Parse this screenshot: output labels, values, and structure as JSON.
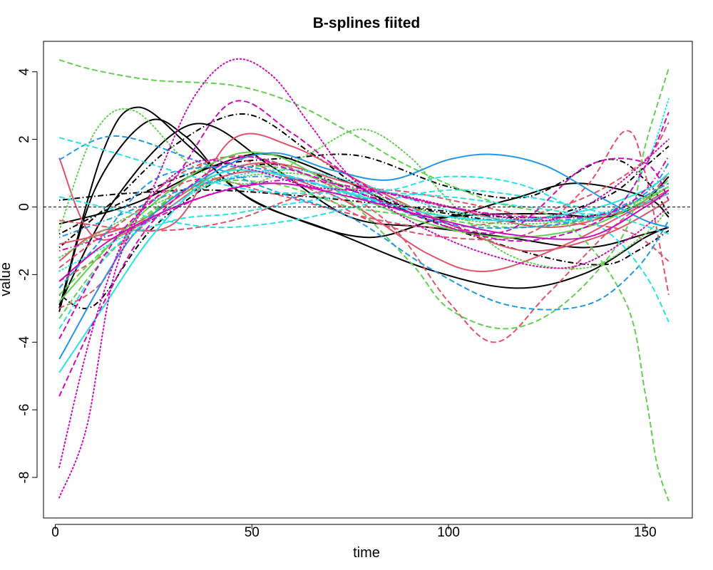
{
  "chart_data": {
    "type": "line",
    "title": "B-splines fiited",
    "xlabel": "time",
    "ylabel": "value",
    "xlim": [
      -3,
      162
    ],
    "ylim": [
      -9.2,
      4.9
    ],
    "xticks": [
      0,
      50,
      100,
      150
    ],
    "yticks": [
      4,
      2,
      0,
      -2,
      -4,
      -6,
      -8
    ],
    "xtick_labels": [
      "0",
      "50",
      "100",
      "150"
    ],
    "ytick_labels": [
      "4",
      "2",
      "0",
      "-2",
      "-4",
      "-6",
      "-8"
    ],
    "reference_line": {
      "y": 0,
      "style": "dashed",
      "color": "#000000"
    },
    "grid": false,
    "legend": "none",
    "palette": [
      "#000000",
      "#DF536B",
      "#61D04F",
      "#2297E6",
      "#28E2E5",
      "#CD0BBC"
    ],
    "series": [
      {
        "color": "#000000",
        "dash": "solid",
        "x": [
          1,
          12,
          21,
          35,
          50,
          70,
          95,
          117,
          135,
          150,
          156
        ],
        "y": [
          -3.0,
          1.6,
          2.95,
          1.7,
          0.2,
          -0.7,
          -1.85,
          -2.4,
          -1.95,
          -0.9,
          -0.6
        ]
      },
      {
        "color": "#000000",
        "dash": "solid",
        "x": [
          1,
          10,
          23,
          33,
          45,
          60,
          80,
          100,
          125,
          140,
          150,
          156
        ],
        "y": [
          -3.1,
          0.5,
          2.5,
          2.1,
          0.6,
          -0.3,
          -0.9,
          -0.3,
          -0.2,
          -0.3,
          0.2,
          0.9
        ]
      },
      {
        "color": "#000000",
        "dash": "solid",
        "x": [
          1,
          15,
          35,
          55,
          75,
          95,
          115,
          135,
          150,
          156
        ],
        "y": [
          -2.9,
          0.2,
          2.45,
          1.2,
          -0.3,
          -0.6,
          -0.9,
          -1.2,
          -0.8,
          -0.6
        ]
      },
      {
        "color": "#000000",
        "dash": "solid",
        "x": [
          1,
          20,
          40,
          55,
          75,
          95,
          115,
          132,
          150,
          156
        ],
        "y": [
          -0.5,
          0.1,
          1.2,
          1.55,
          0.7,
          -0.3,
          0.2,
          0.7,
          0.3,
          -0.3
        ]
      },
      {
        "color": "#000000",
        "dash": "dashdot",
        "x": [
          1,
          10,
          25,
          45,
          60,
          80,
          100,
          120,
          140,
          150,
          156
        ],
        "y": [
          -2.6,
          -2.9,
          -0.6,
          1.0,
          1.2,
          0.3,
          -0.2,
          -0.4,
          0.3,
          1.2,
          1.8
        ]
      },
      {
        "color": "#000000",
        "dash": "dashdot",
        "x": [
          1,
          15,
          30,
          48,
          65,
          80,
          100,
          125,
          140,
          148,
          156
        ],
        "y": [
          -1.2,
          0.2,
          1.8,
          2.75,
          1.6,
          0.4,
          -0.6,
          -1.5,
          -1.7,
          -1.3,
          -0.7
        ]
      },
      {
        "color": "#000000",
        "dash": "dashdot",
        "x": [
          1,
          20,
          40,
          60,
          78,
          100,
          120,
          140,
          150,
          156
        ],
        "y": [
          -0.8,
          0.3,
          1.2,
          1.45,
          1.5,
          0.6,
          0.3,
          1.4,
          0.8,
          -0.2
        ]
      },
      {
        "color": "#000000",
        "dash": "dashdot",
        "x": [
          1,
          18,
          40,
          65,
          90,
          115,
          140,
          156
        ],
        "y": [
          0.2,
          0.4,
          0.5,
          0.3,
          0.0,
          -0.3,
          -0.2,
          0.4
        ]
      },
      {
        "color": "#DF536B",
        "dash": "solid",
        "x": [
          1,
          10,
          25,
          40,
          55,
          75,
          95,
          110,
          130,
          145,
          156
        ],
        "y": [
          1.45,
          -0.9,
          -0.3,
          0.8,
          1.0,
          0.1,
          -1.4,
          -1.9,
          -1.1,
          -0.2,
          0.4
        ]
      },
      {
        "color": "#DF536B",
        "dash": "solid",
        "x": [
          1,
          12,
          30,
          45,
          60,
          80,
          100,
          120,
          140,
          156
        ],
        "y": [
          -1.6,
          -0.7,
          -0.5,
          2.0,
          1.8,
          0.6,
          -0.5,
          -1.3,
          -0.8,
          0.2
        ]
      },
      {
        "color": "#DF536B",
        "dash": "solid",
        "x": [
          1,
          20,
          40,
          55,
          75,
          100,
          125,
          145,
          156
        ],
        "y": [
          -1.1,
          -0.5,
          0.9,
          1.3,
          0.7,
          0.0,
          -0.6,
          -0.1,
          0.5
        ]
      },
      {
        "color": "#DF536B",
        "dash": "dashed",
        "x": [
          1,
          12,
          25,
          45,
          65,
          85,
          100,
          112,
          125,
          140,
          150,
          156
        ],
        "y": [
          -3.0,
          -2.2,
          0.4,
          1.5,
          0.9,
          -0.5,
          -2.8,
          -4.0,
          -2.6,
          -0.8,
          0.2,
          1.0
        ]
      },
      {
        "color": "#DF536B",
        "dash": "dashed",
        "x": [
          1,
          20,
          40,
          60,
          80,
          100,
          120,
          135,
          145,
          150,
          156
        ],
        "y": [
          -2.2,
          -0.8,
          1.4,
          0.8,
          -0.4,
          -0.9,
          -0.8,
          0.6,
          2.25,
          1.0,
          -2.6
        ]
      },
      {
        "color": "#DF536B",
        "dash": "dashed",
        "x": [
          1,
          15,
          35,
          55,
          75,
          95,
          115,
          135,
          150,
          156
        ],
        "y": [
          -1.8,
          -0.6,
          0.8,
          0.4,
          -0.2,
          -0.6,
          -0.4,
          0.3,
          1.4,
          2.5
        ]
      },
      {
        "color": "#DF536B",
        "dash": "dashed",
        "x": [
          1,
          25,
          45,
          65,
          85,
          105,
          125,
          145,
          156
        ],
        "y": [
          -0.4,
          -0.7,
          -0.4,
          0.4,
          0.5,
          0.1,
          -0.4,
          -0.7,
          -1.6
        ]
      },
      {
        "color": "#61D04F",
        "dash": "dashed",
        "x": [
          1,
          10,
          25,
          45,
          60,
          75,
          90,
          110,
          130,
          145,
          150,
          153,
          156
        ],
        "y": [
          4.35,
          4.05,
          3.75,
          3.6,
          3.1,
          2.2,
          1.2,
          0.2,
          -0.5,
          -2.8,
          -5.5,
          -7.6,
          -8.7
        ]
      },
      {
        "color": "#61D04F",
        "dash": "dashed",
        "x": [
          1,
          12,
          30,
          50,
          70,
          90,
          100,
          115,
          130,
          145,
          150,
          156
        ],
        "y": [
          -3.3,
          -1.6,
          0.3,
          1.2,
          0.6,
          -1.6,
          -3.0,
          -3.6,
          -2.8,
          -0.7,
          1.8,
          4.1
        ]
      },
      {
        "color": "#61D04F",
        "dash": "dashed",
        "x": [
          1,
          15,
          35,
          55,
          75,
          95,
          115,
          135,
          150,
          156
        ],
        "y": [
          -2.6,
          -1.0,
          0.6,
          0.7,
          0.0,
          -0.3,
          -0.6,
          -0.4,
          0.3,
          0.8
        ]
      },
      {
        "color": "#61D04F",
        "dash": "dotted",
        "x": [
          1,
          10,
          20,
          35,
          50,
          65,
          78,
          90,
          100,
          115,
          135,
          150,
          156
        ],
        "y": [
          -0.7,
          2.2,
          2.85,
          1.2,
          0.7,
          1.6,
          2.3,
          1.5,
          0.2,
          -1.4,
          -1.8,
          -0.8,
          0.0
        ]
      },
      {
        "color": "#61D04F",
        "dash": "solid",
        "x": [
          1,
          20,
          40,
          55,
          75,
          95,
          115,
          135,
          150,
          156
        ],
        "y": [
          -2.8,
          -0.4,
          1.3,
          1.55,
          0.4,
          -0.5,
          -0.9,
          -0.6,
          0.2,
          0.6
        ]
      },
      {
        "color": "#61D04F",
        "dash": "dotted",
        "x": [
          1,
          20,
          40,
          60,
          80,
          100,
          120,
          140,
          156
        ],
        "y": [
          -1.5,
          -0.2,
          0.7,
          1.0,
          0.4,
          -0.3,
          -0.5,
          -0.2,
          0.6
        ]
      },
      {
        "color": "#2297E6",
        "dash": "solid",
        "x": [
          1,
          20,
          40,
          55,
          70,
          85,
          100,
          112,
          125,
          140,
          150,
          156
        ],
        "y": [
          -4.5,
          -0.8,
          1.0,
          1.6,
          1.1,
          0.8,
          1.4,
          1.55,
          1.2,
          0.2,
          -0.4,
          -0.6
        ]
      },
      {
        "color": "#2297E6",
        "dash": "dashed",
        "x": [
          1,
          15,
          35,
          55,
          75,
          95,
          115,
          135,
          148,
          156
        ],
        "y": [
          1.4,
          2.1,
          1.4,
          0.5,
          -0.3,
          -1.8,
          -2.9,
          -2.9,
          -1.8,
          -0.4
        ]
      },
      {
        "color": "#2297E6",
        "dash": "dashed",
        "x": [
          1,
          10,
          25,
          45,
          60,
          80,
          100,
          120,
          140,
          156
        ],
        "y": [
          -2.4,
          -1.2,
          0.8,
          1.2,
          0.9,
          0.2,
          -0.5,
          -0.6,
          -0.2,
          0.7
        ]
      },
      {
        "color": "#2297E6",
        "dash": "dashdot",
        "x": [
          1,
          15,
          35,
          55,
          75,
          95,
          115,
          135,
          150,
          156
        ],
        "y": [
          -0.9,
          -0.3,
          0.6,
          0.9,
          0.4,
          -0.2,
          -0.4,
          -0.3,
          0.4,
          1.3
        ]
      },
      {
        "color": "#28E2E5",
        "dash": "solid",
        "x": [
          1,
          12,
          25,
          40,
          55,
          75,
          95,
          115,
          135,
          150,
          156
        ],
        "y": [
          -4.9,
          -3.0,
          -0.8,
          0.9,
          1.0,
          0.4,
          -0.2,
          -0.4,
          -0.1,
          0.5,
          1.0
        ]
      },
      {
        "color": "#28E2E5",
        "dash": "dashed",
        "x": [
          1,
          15,
          35,
          50,
          65,
          85,
          100,
          120,
          140,
          150,
          156
        ],
        "y": [
          2.05,
          1.6,
          0.9,
          0.5,
          0.4,
          0.5,
          0.9,
          0.6,
          -0.7,
          -2.0,
          -3.4
        ]
      },
      {
        "color": "#28E2E5",
        "dash": "dashed",
        "x": [
          1,
          15,
          30,
          45,
          60,
          80,
          100,
          120,
          140,
          156
        ],
        "y": [
          -3.6,
          -1.2,
          -0.4,
          -0.2,
          0.1,
          0.4,
          0.3,
          0.0,
          -0.2,
          0.4
        ]
      },
      {
        "color": "#28E2E5",
        "dash": "dotted",
        "x": [
          1,
          20,
          40,
          60,
          80,
          100,
          120,
          140,
          150,
          156
        ],
        "y": [
          -1.9,
          -0.7,
          0.7,
          1.1,
          0.6,
          -0.1,
          -0.4,
          -0.2,
          1.2,
          3.2
        ]
      },
      {
        "color": "#28E2E5",
        "dash": "dashed",
        "x": [
          1,
          20,
          40,
          60,
          80,
          100,
          120,
          140,
          156
        ],
        "y": [
          0.3,
          -0.2,
          -0.6,
          -0.4,
          0.1,
          0.5,
          0.3,
          -0.2,
          -0.8
        ]
      },
      {
        "color": "#CD0BBC",
        "dash": "dotted",
        "x": [
          1,
          8,
          15,
          25,
          35,
          45,
          55,
          65,
          75,
          90,
          110,
          130,
          145,
          156
        ],
        "y": [
          -8.6,
          -6.5,
          -2.0,
          0.6,
          3.2,
          4.35,
          3.9,
          2.4,
          0.9,
          -0.4,
          -1.4,
          -1.8,
          -1.0,
          0.0
        ]
      },
      {
        "color": "#CD0BBC",
        "dash": "dotted",
        "x": [
          1,
          10,
          20,
          35,
          50,
          65,
          85,
          105,
          125,
          140,
          156
        ],
        "y": [
          -7.7,
          -3.4,
          -0.4,
          1.3,
          1.1,
          0.6,
          0.4,
          -0.1,
          -0.4,
          0.4,
          2.0
        ]
      },
      {
        "color": "#CD0BBC",
        "dash": "dashed",
        "x": [
          1,
          12,
          25,
          45,
          60,
          80,
          100,
          120,
          140,
          150,
          156
        ],
        "y": [
          -5.6,
          -2.9,
          -0.4,
          1.4,
          1.1,
          0.3,
          -0.6,
          -1.0,
          -0.3,
          1.2,
          2.8
        ]
      },
      {
        "color": "#CD0BBC",
        "dash": "dashed",
        "x": [
          1,
          15,
          30,
          45,
          60,
          75,
          95,
          115,
          135,
          150,
          156
        ],
        "y": [
          -3.9,
          -1.0,
          0.8,
          3.1,
          2.2,
          0.9,
          -0.3,
          -0.7,
          1.2,
          1.3,
          0.2
        ]
      },
      {
        "color": "#CD0BBC",
        "dash": "dashdot",
        "x": [
          1,
          20,
          40,
          60,
          80,
          100,
          120,
          140,
          150,
          156
        ],
        "y": [
          -1.3,
          -0.6,
          0.4,
          0.8,
          0.5,
          0.0,
          -0.3,
          -0.2,
          0.5,
          1.5
        ]
      },
      {
        "color": "#CD0BBC",
        "dash": "solid",
        "x": [
          1,
          15,
          35,
          55,
          75,
          95,
          115,
          135,
          150,
          156
        ],
        "y": [
          -2.2,
          -0.9,
          0.2,
          0.7,
          0.3,
          -0.3,
          -0.8,
          -0.9,
          0.0,
          0.5
        ]
      }
    ]
  }
}
